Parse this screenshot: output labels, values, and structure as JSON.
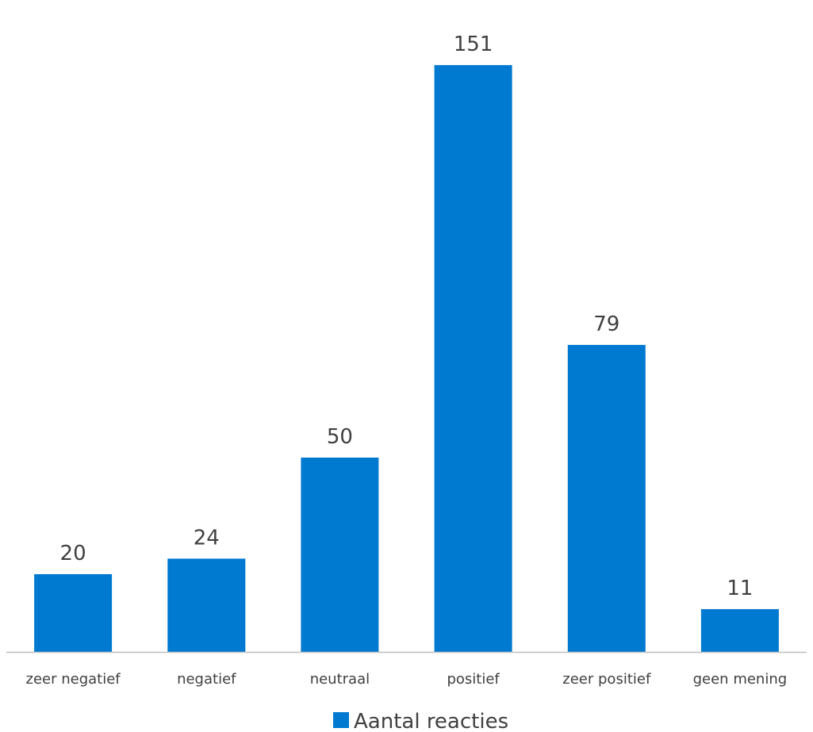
{
  "chart_data": {
    "type": "bar",
    "categories": [
      "zeer negatief",
      "negatief",
      "neutraal",
      "positief",
      "zeer positief",
      "geen mening"
    ],
    "series": [
      {
        "name": "Aantal reacties",
        "values": [
          20,
          24,
          50,
          151,
          79,
          11
        ],
        "color": "#0079D0"
      }
    ],
    "title": "",
    "xlabel": "",
    "ylabel": "",
    "ylim": [
      0,
      155
    ],
    "grid": false,
    "y_axis_visible": false,
    "data_labels": true,
    "legend_position": "bottom",
    "axis_color": "#BFBFBF"
  }
}
